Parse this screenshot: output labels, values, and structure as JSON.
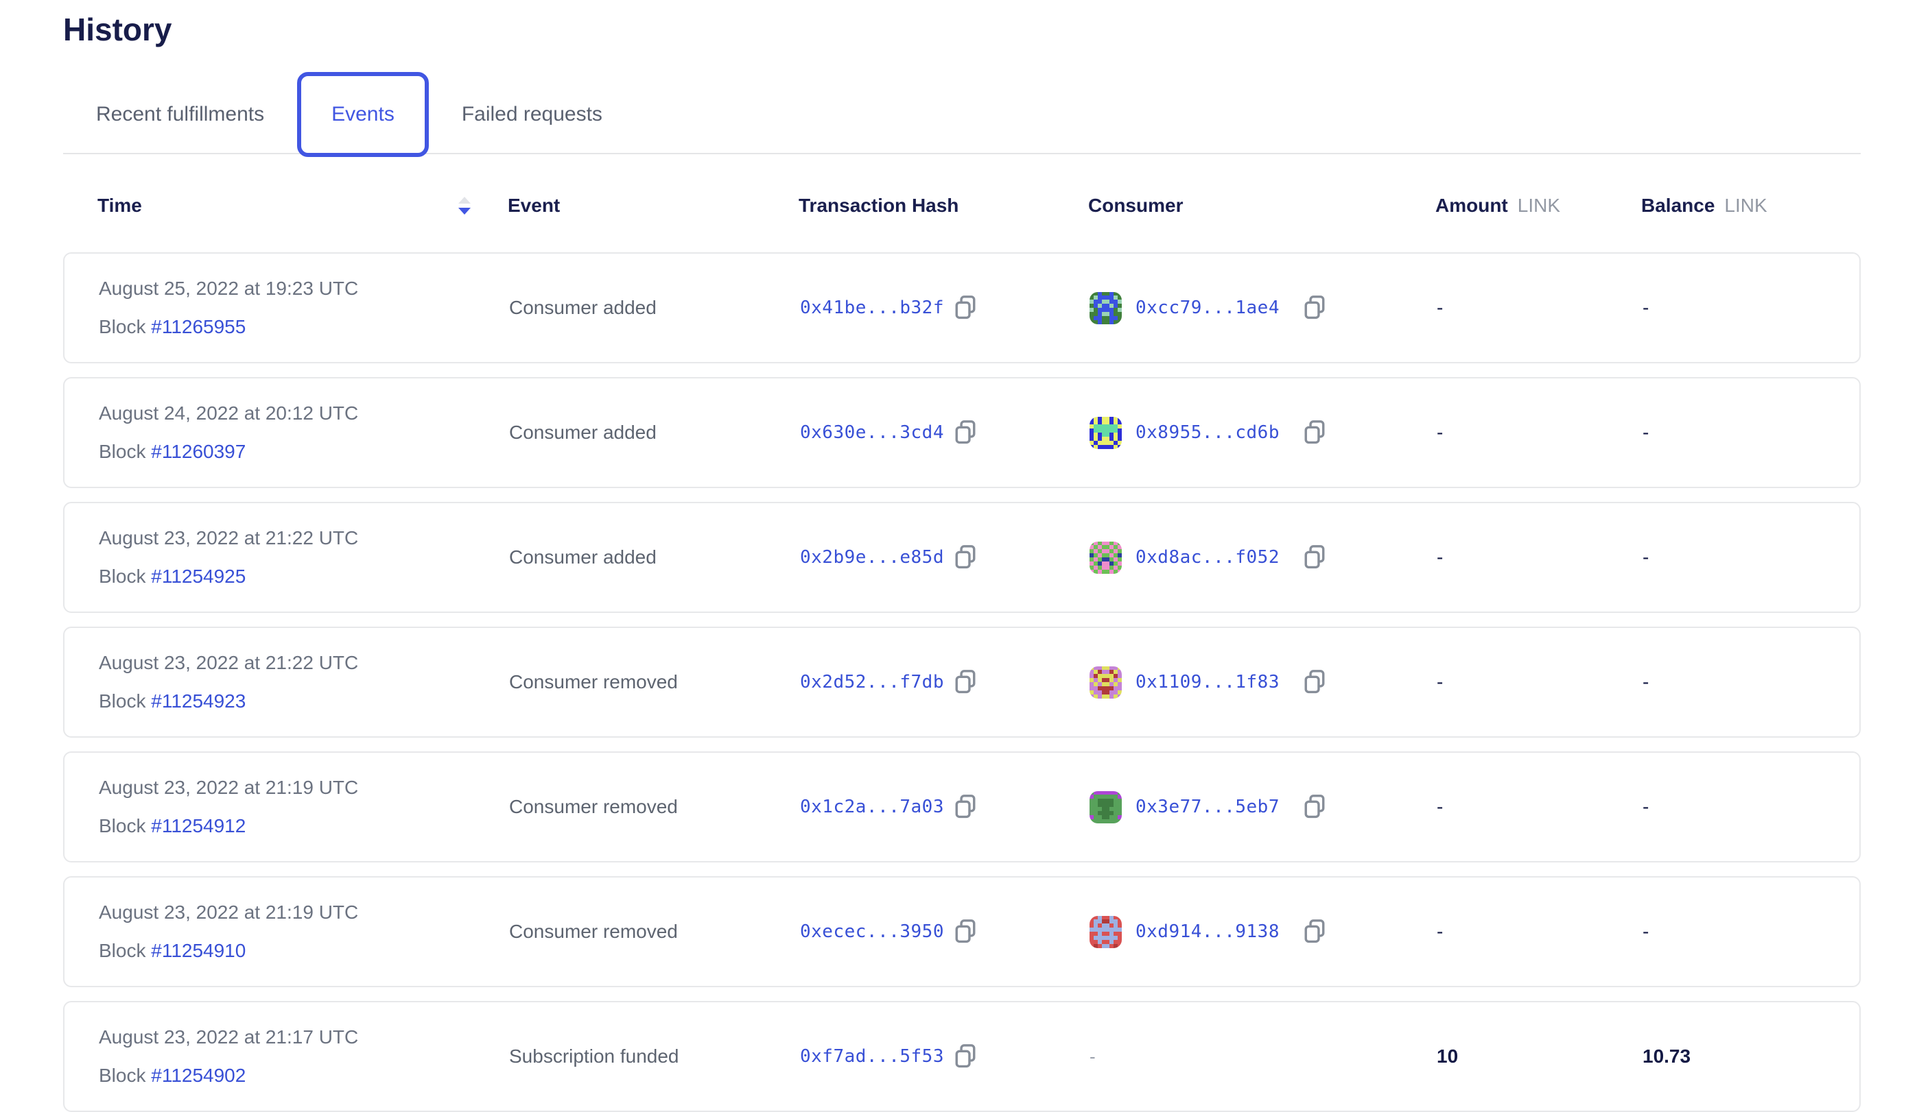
{
  "page": {
    "title": "History"
  },
  "tabs": [
    {
      "label": "Recent fulfillments",
      "active": false
    },
    {
      "label": "Events",
      "active": true
    },
    {
      "label": "Failed requests",
      "active": false
    }
  ],
  "colors": {
    "heading_navy": "#181d4a",
    "link_blue": "#3850d6",
    "tab_active_blue": "#4156e2",
    "body_gray": "#6b7280",
    "unit_gray": "#9298a3",
    "card_border": "#e7e8ea",
    "sort_inactive_gray": "#e1e3e8",
    "sort_active_blue": "#4156e2",
    "copy_icon_gray": "#868d98"
  },
  "icons": {
    "sort": "sort-descending-icon",
    "copy": "copy-icon"
  },
  "table": {
    "labels": {
      "block": "Block"
    },
    "columns": {
      "time": "Time",
      "event": "Event",
      "tx": "Transaction Hash",
      "consumer": "Consumer",
      "amount": "Amount",
      "balance": "Balance",
      "unit": "LINK"
    },
    "sort": {
      "column": "Time",
      "direction": "descending"
    },
    "rows": [
      {
        "time": "August 25, 2022 at 19:23 UTC",
        "block": "#11265955",
        "event": "Consumer added",
        "tx_hash": "0x41be...b32f",
        "consumer": {
          "address": "0xcc79...1ae4",
          "avatar": {
            "colors": [
              "#40803c",
              "#3b52e2",
              "#9bd4b4"
            ],
            "pattern": [
              "00100100",
              "02111120",
              "21122112",
              "01211210",
              "20111102",
              "00122100",
              "01100110",
              "00100100"
            ]
          }
        },
        "amount": "-",
        "balance": "-"
      },
      {
        "time": "August 24, 2022 at 20:12 UTC",
        "block": "#11260397",
        "event": "Consumer added",
        "tx_hash": "0x630e...3cd4",
        "consumer": {
          "address": "0x8955...cd6b",
          "avatar": {
            "colors": [
              "#2e2fd8",
              "#eaf06b",
              "#63dba4"
            ],
            "pattern": [
              "01011010",
              "01011010",
              "12222221",
              "02222220",
              "01022010",
              "01011010",
              "10111101",
              "01000010"
            ]
          }
        },
        "amount": "-",
        "balance": "-"
      },
      {
        "time": "August 23, 2022 at 21:22 UTC",
        "block": "#11254925",
        "event": "Consumer added",
        "tx_hash": "0x2b9e...e85d",
        "consumer": {
          "address": "0xd8ac...f052",
          "avatar": {
            "colors": [
              "#6cc055",
              "#ef8ecb",
              "#2b3f9e"
            ],
            "pattern": [
              "01011010",
              "10100101",
              "01011010",
              "20100102",
              "01022010",
              "10211201",
              "01011010",
              "10100101"
            ]
          }
        },
        "amount": "-",
        "balance": "-"
      },
      {
        "time": "August 23, 2022 at 21:22 UTC",
        "block": "#11254923",
        "event": "Consumer removed",
        "tx_hash": "0x2d52...f7db",
        "consumer": {
          "address": "0x1109...1f83",
          "avatar": {
            "colors": [
              "#c583d6",
              "#dfdf5e",
              "#b03a3a"
            ],
            "pattern": [
              "10011001",
              "01200210",
              "02111120",
              "10122101",
              "01011010",
              "00222200",
              "10022001",
              "01011010"
            ]
          }
        },
        "amount": "-",
        "balance": "-"
      },
      {
        "time": "August 23, 2022 at 21:19 UTC",
        "block": "#11254912",
        "event": "Consumer removed",
        "tx_hash": "0x1c2a...7a03",
        "consumer": {
          "address": "0x3e77...5eb7",
          "avatar": {
            "colors": [
              "#58a25b",
              "#ad46d6",
              "#3f7d42"
            ],
            "pattern": [
              "01111110",
              "10000001",
              "00222200",
              "00222200",
              "00022000",
              "00222200",
              "10022001",
              "00000000"
            ]
          }
        },
        "amount": "-",
        "balance": "-"
      },
      {
        "time": "August 23, 2022 at 21:19 UTC",
        "block": "#11254910",
        "event": "Consumer removed",
        "tx_hash": "0xecec...3950",
        "consumer": {
          "address": "0xd914...9138",
          "avatar": {
            "colors": [
              "#d95252",
              "#9db1e3",
              "#b03a3a"
            ],
            "pattern": [
              "00100100",
              "01122110",
              "01011010",
              "11111111",
              "00100100",
              "01111110",
              "00100100",
              "02011020"
            ]
          }
        },
        "amount": "-",
        "balance": "-"
      },
      {
        "time": "August 23, 2022 at 21:17 UTC",
        "block": "#11254902",
        "event": "Subscription funded",
        "tx_hash": "0xf7ad...5f53",
        "consumer": null,
        "consumer_empty": "-",
        "amount": "10",
        "balance": "10.73"
      }
    ]
  }
}
